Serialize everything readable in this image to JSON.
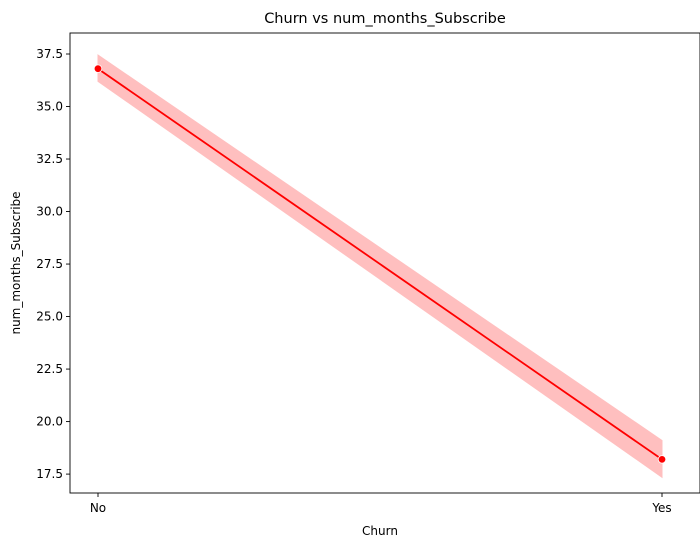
{
  "chart_data": {
    "type": "line",
    "title": "Churn vs num_months_Subscribe",
    "xlabel": "Churn",
    "ylabel": "num_months_Subscribe",
    "categories": [
      "No",
      "Yes"
    ],
    "series": [
      {
        "values": [
          36.8,
          18.2
        ],
        "ci_lower": [
          36.2,
          17.35
        ],
        "ci_upper": [
          37.45,
          19.1
        ]
      }
    ],
    "ylim": [
      16.6,
      38.5
    ],
    "yticks": [
      "17.5",
      "20.0",
      "22.5",
      "25.0",
      "27.5",
      "30.0",
      "32.5",
      "35.0",
      "37.5"
    ],
    "grid": false,
    "legend": "none",
    "colors": {
      "line": "#ff0000",
      "band": "#ffbfbf",
      "marker": "#ff0000",
      "marker_edge": "#ffffff"
    }
  }
}
